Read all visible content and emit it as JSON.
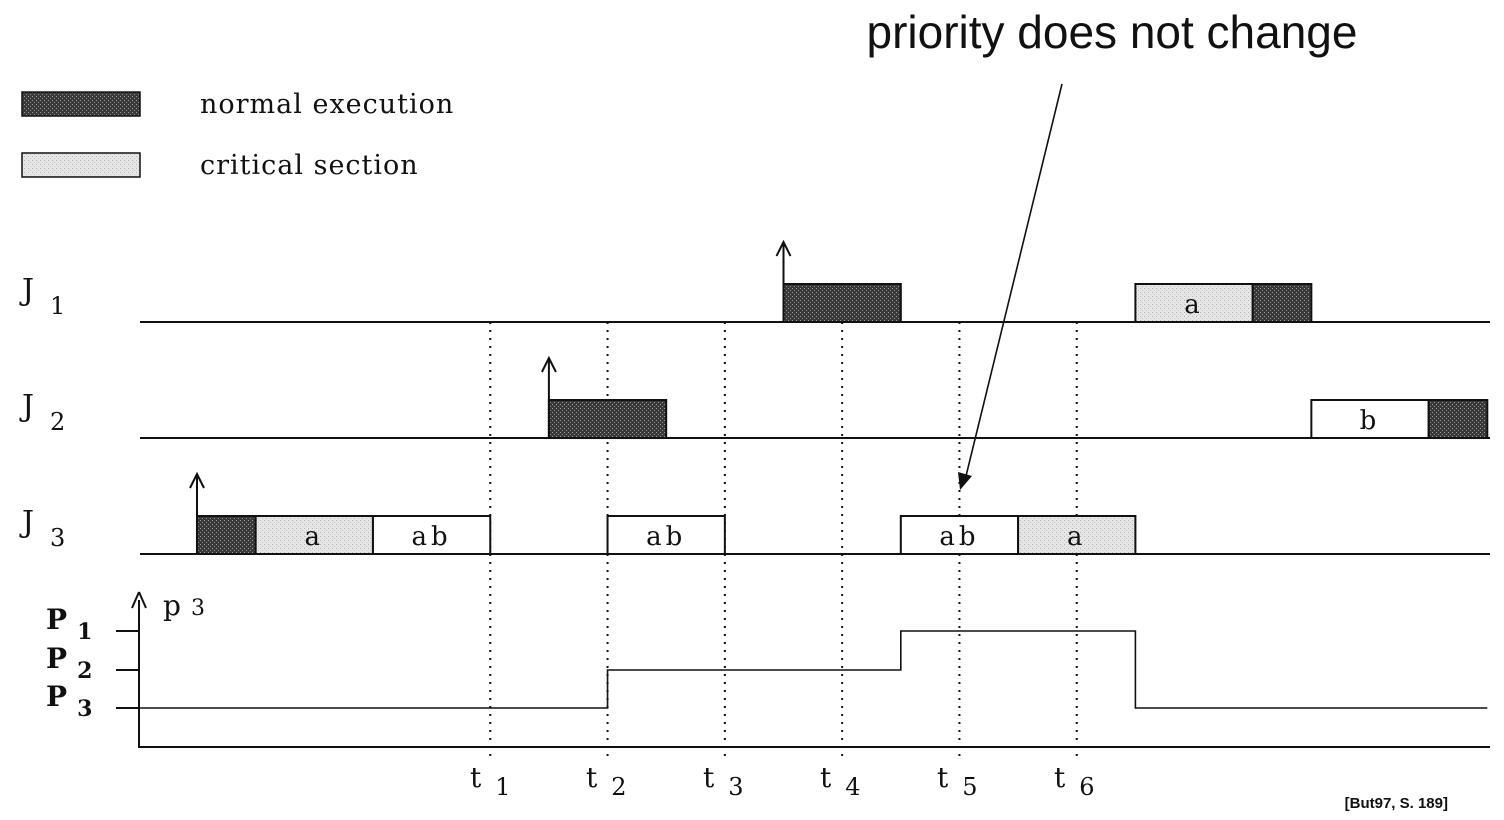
{
  "title": "priority does not change",
  "citation": "[But97, S. 189]",
  "legend": [
    {
      "label": "normal execution",
      "pattern": "normal"
    },
    {
      "label": "critical section",
      "pattern": "critical"
    }
  ],
  "jobs": [
    {
      "name": "J",
      "sub": "1"
    },
    {
      "name": "J",
      "sub": "2"
    },
    {
      "name": "J",
      "sub": "3"
    }
  ],
  "priority_axis": {
    "label": "p",
    "label_sub": "3",
    "levels": [
      {
        "name": "P",
        "sub": "1"
      },
      {
        "name": "P",
        "sub": "2"
      },
      {
        "name": "P",
        "sub": "3"
      }
    ]
  },
  "time_marks": [
    {
      "name": "t",
      "sub": "1"
    },
    {
      "name": "t",
      "sub": "2"
    },
    {
      "name": "t",
      "sub": "3"
    },
    {
      "name": "t",
      "sub": "4"
    },
    {
      "name": "t",
      "sub": "5"
    },
    {
      "name": "t",
      "sub": "6"
    }
  ],
  "segments": [
    {
      "job": 0,
      "from": 5,
      "to": 6,
      "type": "normal",
      "label": ""
    },
    {
      "job": 0,
      "from": 8,
      "to": 9,
      "type": "critical",
      "label": "a"
    },
    {
      "job": 0,
      "from": 9,
      "to": 9.5,
      "type": "normal",
      "label": ""
    },
    {
      "job": 1,
      "from": 3,
      "to": 4,
      "type": "normal",
      "label": ""
    },
    {
      "job": 1,
      "from": 9.5,
      "to": 10.5,
      "type": "plain",
      "label": "b"
    },
    {
      "job": 1,
      "from": 10.5,
      "to": 11,
      "type": "normal",
      "label": ""
    },
    {
      "job": 2,
      "from": 0,
      "to": 0.5,
      "type": "normal",
      "label": ""
    },
    {
      "job": 2,
      "from": 0.5,
      "to": 1.5,
      "type": "critical",
      "label": "a"
    },
    {
      "job": 2,
      "from": 1.5,
      "to": 2.5,
      "type": "plain",
      "label": "ab"
    },
    {
      "job": 2,
      "from": 3.5,
      "to": 4.5,
      "type": "plain",
      "label": "ab"
    },
    {
      "job": 2,
      "from": 6,
      "to": 7,
      "type": "plain",
      "label": "ab"
    },
    {
      "job": 2,
      "from": 7,
      "to": 8,
      "type": "critical",
      "label": "a"
    }
  ],
  "arrivals": [
    {
      "job": 0,
      "at": 5
    },
    {
      "job": 1,
      "at": 3
    },
    {
      "job": 2,
      "at": 0
    }
  ],
  "priority_steps": [
    {
      "from": -0.5,
      "to": 3.5,
      "level": 2
    },
    {
      "from": 3.5,
      "to": 6,
      "level": 1
    },
    {
      "from": 6,
      "to": 8,
      "level": 0
    },
    {
      "from": 8,
      "to": 11,
      "level": 2
    }
  ],
  "time_mark_positions": [
    2.5,
    3.5,
    4.5,
    5.5,
    6.5,
    7.5
  ]
}
